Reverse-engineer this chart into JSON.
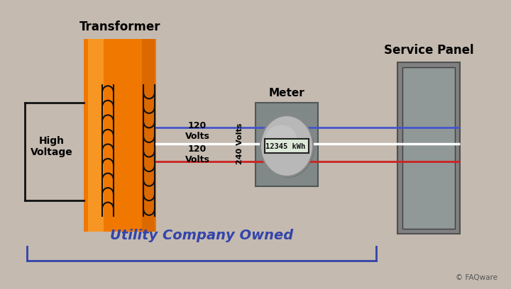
{
  "bg_color": "#c4bab0",
  "title_transformer": "Transformer",
  "title_service_panel": "Service Panel",
  "title_meter": "Meter",
  "label_high_voltage": "High\nVoltage",
  "label_120v_top": "120\nVolts",
  "label_120v_bottom": "120\nVolts",
  "label_240v": "240 Volts",
  "label_utility": "Utility Company Owned",
  "label_copyright": "© FAQware",
  "meter_display": "12345 kWh",
  "transformer_color_main": "#f07800",
  "transformer_color_light": "#ffb040",
  "transformer_color_dark": "#c05000",
  "service_panel_outer": "#808080",
  "service_panel_inner": "#909898",
  "meter_box_color": "#808888",
  "meter_circle_color": "#b8b8b8",
  "meter_circle_highlight": "#d0d0d0",
  "wire_blue": "#4455cc",
  "wire_white": "#ffffff",
  "wire_red": "#cc2222",
  "text_color_black": "#000000",
  "text_color_blue": "#3344aa",
  "utility_bracket_color": "#3344aa",
  "coil_color": "#111111",
  "hv_line_color": "#111111"
}
